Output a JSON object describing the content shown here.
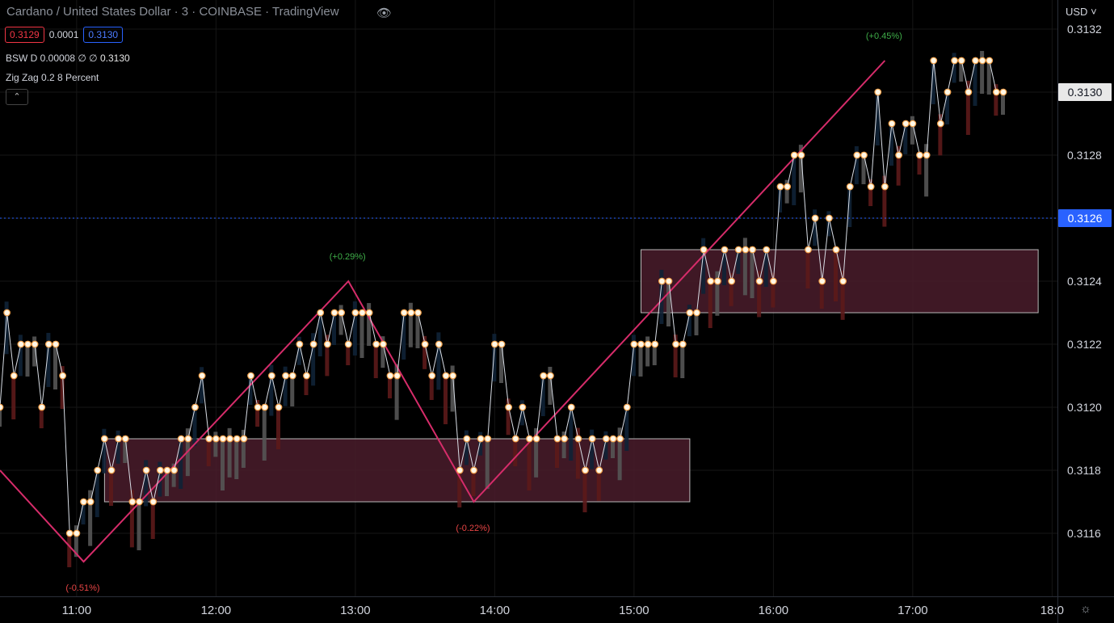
{
  "header": {
    "title": "Cardano / United States Dollar · 3 · COINBASE · TradingView",
    "bid": "0.3129",
    "spread": "0.0001",
    "ask": "0.3130",
    "indicator1_label": "BSW D 0.00008",
    "indicator1_values": "∅ ∅",
    "indicator1_value": "0.3130",
    "indicator2_label": "Zig Zag 0.2 8 Percent",
    "collapse_icon": "chevron-up"
  },
  "price_axis": {
    "currency": "USD"
  },
  "colors": {
    "background": "#000000",
    "bull": "#0f2236",
    "bear": "#5c1a1a",
    "doji": "#555555",
    "zigzag": "#d62c6a",
    "zone_fill": "#4a1c2c",
    "zone_stroke": "#b9b9b9",
    "current_price": "#2962ff",
    "pct_up": "#3fae49",
    "pct_down": "#e84545"
  },
  "chart_data": {
    "type": "line",
    "x_ticks": [
      "11:00",
      "12:00",
      "13:00",
      "14:00",
      "15:00",
      "16:00",
      "17:00",
      "18:0"
    ],
    "y_ticks": [
      "0.3116",
      "0.3118",
      "0.3120",
      "0.3122",
      "0.3124",
      "0.3128",
      "0.3132"
    ],
    "ylim": [
      0.31146,
      0.31327
    ],
    "current_price": 0.3126,
    "current_price_label": "0.3126",
    "last_price": 0.313,
    "last_price_label": "0.3130",
    "series": [
      {
        "points": [
          [
            "10:27",
            0.312
          ],
          [
            "10:30",
            0.3123
          ],
          [
            "10:33",
            0.3121
          ],
          [
            "10:36",
            0.3122
          ],
          [
            "10:39",
            0.3122
          ],
          [
            "10:42",
            0.3122
          ],
          [
            "10:45",
            0.312
          ],
          [
            "10:48",
            0.3122
          ],
          [
            "10:51",
            0.3122
          ],
          [
            "10:54",
            0.3121
          ],
          [
            "10:57",
            0.3116
          ],
          [
            "11:00",
            0.3116
          ],
          [
            "11:03",
            0.3117
          ],
          [
            "11:06",
            0.3117
          ],
          [
            "11:09",
            0.3118
          ],
          [
            "11:12",
            0.3119
          ],
          [
            "11:15",
            0.3118
          ],
          [
            "11:18",
            0.3119
          ],
          [
            "11:21",
            0.3119
          ],
          [
            "11:24",
            0.3117
          ],
          [
            "11:27",
            0.3117
          ],
          [
            "11:30",
            0.3118
          ],
          [
            "11:33",
            0.3117
          ],
          [
            "11:36",
            0.3118
          ],
          [
            "11:39",
            0.3118
          ],
          [
            "11:42",
            0.3118
          ],
          [
            "11:45",
            0.3119
          ],
          [
            "11:48",
            0.3119
          ],
          [
            "11:51",
            0.312
          ],
          [
            "11:54",
            0.3121
          ],
          [
            "11:57",
            0.3119
          ],
          [
            "12:00",
            0.3119
          ],
          [
            "12:03",
            0.3119
          ],
          [
            "12:06",
            0.3119
          ],
          [
            "12:09",
            0.3119
          ],
          [
            "12:12",
            0.3119
          ],
          [
            "12:15",
            0.3121
          ],
          [
            "12:18",
            0.312
          ],
          [
            "12:21",
            0.312
          ],
          [
            "12:24",
            0.3121
          ],
          [
            "12:27",
            0.312
          ],
          [
            "12:30",
            0.3121
          ],
          [
            "12:33",
            0.3121
          ],
          [
            "12:36",
            0.3122
          ],
          [
            "12:39",
            0.3121
          ],
          [
            "12:42",
            0.3122
          ],
          [
            "12:45",
            0.3123
          ],
          [
            "12:48",
            0.3122
          ],
          [
            "12:51",
            0.3123
          ],
          [
            "12:54",
            0.3123
          ],
          [
            "12:57",
            0.3122
          ],
          [
            "13:00",
            0.3123
          ],
          [
            "13:03",
            0.3123
          ],
          [
            "13:06",
            0.3123
          ],
          [
            "13:09",
            0.3122
          ],
          [
            "13:12",
            0.3122
          ],
          [
            "13:15",
            0.3121
          ],
          [
            "13:18",
            0.3121
          ],
          [
            "13:21",
            0.3123
          ],
          [
            "13:24",
            0.3123
          ],
          [
            "13:27",
            0.3123
          ],
          [
            "13:30",
            0.3122
          ],
          [
            "13:33",
            0.3121
          ],
          [
            "13:36",
            0.3122
          ],
          [
            "13:39",
            0.3121
          ],
          [
            "13:42",
            0.3121
          ],
          [
            "13:45",
            0.3118
          ],
          [
            "13:48",
            0.3119
          ],
          [
            "13:51",
            0.3118
          ],
          [
            "13:54",
            0.3119
          ],
          [
            "13:57",
            0.3119
          ],
          [
            "14:00",
            0.3122
          ],
          [
            "14:03",
            0.3122
          ],
          [
            "14:06",
            0.312
          ],
          [
            "14:09",
            0.3119
          ],
          [
            "14:12",
            0.312
          ],
          [
            "14:15",
            0.3119
          ],
          [
            "14:18",
            0.3119
          ],
          [
            "14:21",
            0.3121
          ],
          [
            "14:24",
            0.3121
          ],
          [
            "14:27",
            0.3119
          ],
          [
            "14:30",
            0.3119
          ],
          [
            "14:33",
            0.312
          ],
          [
            "14:36",
            0.3119
          ],
          [
            "14:39",
            0.3118
          ],
          [
            "14:42",
            0.3119
          ],
          [
            "14:45",
            0.3118
          ],
          [
            "14:48",
            0.3119
          ],
          [
            "14:51",
            0.3119
          ],
          [
            "14:54",
            0.3119
          ],
          [
            "14:57",
            0.312
          ],
          [
            "15:00",
            0.3122
          ],
          [
            "15:03",
            0.3122
          ],
          [
            "15:06",
            0.3122
          ],
          [
            "15:09",
            0.3122
          ],
          [
            "15:12",
            0.3124
          ],
          [
            "15:15",
            0.3124
          ],
          [
            "15:18",
            0.3122
          ],
          [
            "15:21",
            0.3122
          ],
          [
            "15:24",
            0.3123
          ],
          [
            "15:27",
            0.3123
          ],
          [
            "15:30",
            0.3125
          ],
          [
            "15:33",
            0.3124
          ],
          [
            "15:36",
            0.3124
          ],
          [
            "15:39",
            0.3125
          ],
          [
            "15:42",
            0.3124
          ],
          [
            "15:45",
            0.3125
          ],
          [
            "15:48",
            0.3125
          ],
          [
            "15:51",
            0.3125
          ],
          [
            "15:54",
            0.3124
          ],
          [
            "15:57",
            0.3125
          ],
          [
            "16:00",
            0.3124
          ],
          [
            "16:03",
            0.3127
          ],
          [
            "16:06",
            0.3127
          ],
          [
            "16:09",
            0.3128
          ],
          [
            "16:12",
            0.3128
          ],
          [
            "16:15",
            0.3125
          ],
          [
            "16:18",
            0.3126
          ],
          [
            "16:21",
            0.3124
          ],
          [
            "16:24",
            0.3126
          ],
          [
            "16:27",
            0.3125
          ],
          [
            "16:30",
            0.3124
          ],
          [
            "16:33",
            0.3127
          ],
          [
            "16:36",
            0.3128
          ],
          [
            "16:39",
            0.3128
          ],
          [
            "16:42",
            0.3127
          ],
          [
            "16:45",
            0.313
          ],
          [
            "16:48",
            0.3127
          ],
          [
            "16:51",
            0.3129
          ],
          [
            "16:54",
            0.3128
          ],
          [
            "16:57",
            0.3129
          ],
          [
            "17:00",
            0.3129
          ],
          [
            "17:03",
            0.3128
          ],
          [
            "17:06",
            0.3128
          ],
          [
            "17:09",
            0.3131
          ],
          [
            "17:12",
            0.3129
          ],
          [
            "17:15",
            0.313
          ],
          [
            "17:18",
            0.3131
          ],
          [
            "17:21",
            0.3131
          ],
          [
            "17:24",
            0.313
          ],
          [
            "17:27",
            0.3131
          ],
          [
            "17:30",
            0.3131
          ],
          [
            "17:33",
            0.3131
          ],
          [
            "17:36",
            0.313
          ],
          [
            "17:39",
            0.313
          ]
        ]
      }
    ],
    "zigzag": [
      {
        "t": "10:27",
        "p": 0.3118
      },
      {
        "t": "11:03",
        "p": 0.31151,
        "label": "(-0.51%)",
        "dir": "down"
      },
      {
        "t": "12:57",
        "p": 0.3124,
        "label": "(+0.29%)",
        "dir": "up"
      },
      {
        "t": "13:51",
        "p": 0.3117,
        "label": "(-0.22%)",
        "dir": "down"
      },
      {
        "t": "16:48",
        "p": 0.3131,
        "label": "(+0.45%)",
        "dir": "up"
      }
    ],
    "zones": [
      {
        "t_start": "11:12",
        "t_end": "15:24",
        "p_high": 0.3119,
        "p_low": 0.3117
      },
      {
        "t_start": "15:03",
        "t_end": "17:54",
        "p_high": 0.3125,
        "p_low": 0.3123
      }
    ]
  }
}
